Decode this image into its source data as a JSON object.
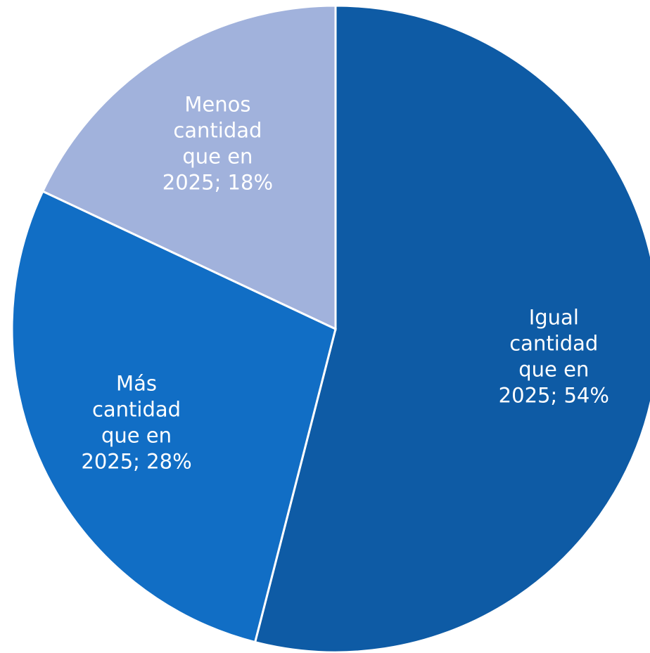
{
  "chart_data": {
    "type": "pie",
    "title": "",
    "slices": [
      {
        "name": "Igual cantidad que en 2025",
        "value": 54,
        "value_label": "54%",
        "label_lines": [
          "Igual",
          "cantidad",
          "que en",
          "2025; 54%"
        ],
        "color": "#0E5BA5",
        "label_color": "#FFFFFF"
      },
      {
        "name": "Más cantidad que en 2025",
        "value": 28,
        "value_label": "28%",
        "label_lines": [
          "Más",
          "cantidad",
          "que en",
          "2025; 28%"
        ],
        "color": "#116EC5",
        "label_color": "#FFFFFF"
      },
      {
        "name": "Menos cantidad que en 2025",
        "value": 18,
        "value_label": "18%",
        "label_lines": [
          "Menos",
          "cantidad",
          "que en",
          "2025; 18%"
        ],
        "color": "#A1B2DC",
        "label_color": "#FFFFFF"
      }
    ],
    "legend": false
  }
}
